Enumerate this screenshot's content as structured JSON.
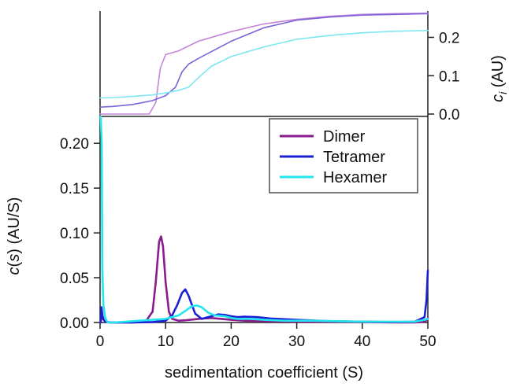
{
  "chart_data": {
    "type": "line",
    "xlabel": "sedimentation coefficient (S)",
    "ylabel_main": {
      "prefix": "c",
      "middle": "(",
      "italic": "s",
      "suffix": ") (AU/S)"
    },
    "ylabel_top": {
      "italic": "c",
      "subscript": "i",
      "suffix": " (AU)"
    },
    "xlim": [
      0,
      50
    ],
    "x_ticks": [
      0,
      10,
      20,
      30,
      40,
      50
    ],
    "x_tick_labels": [
      "0",
      "10",
      "20",
      "30",
      "40",
      "50"
    ],
    "ylim_main": [
      0,
      0.23
    ],
    "y_ticks_main": [
      0.0,
      0.05,
      0.1,
      0.15,
      0.2
    ],
    "y_tick_labels_main": [
      "0.00",
      "0.05",
      "0.10",
      "0.15",
      "0.20"
    ],
    "ylim_top": [
      0,
      0.27
    ],
    "y_ticks_top": [
      0.0,
      0.1,
      0.2
    ],
    "y_tick_labels_top": [
      "0.0",
      "0.1",
      "0.2"
    ],
    "legend": {
      "placement": "center-right",
      "entries": [
        "Dimer",
        "Tetramer",
        "Hexamer"
      ]
    },
    "colors": {
      "Dimer": "#8a1b8e",
      "Tetramer": "#1a1fd6",
      "Hexamer": "#22e6ee",
      "Dimer_cum": "#c487d8",
      "Tetramer_cum": "#7d62d8",
      "Hexamer_cum": "#7fe7f2"
    },
    "series": [
      {
        "name": "Dimer",
        "x": [
          0.1,
          0.2,
          0.4,
          0.8,
          1.5,
          3,
          5,
          7,
          8,
          8.5,
          9,
          9.3,
          9.6,
          10,
          10.5,
          11,
          12,
          13,
          15,
          17,
          20,
          22,
          25,
          30,
          35,
          40,
          45,
          48,
          49.5,
          49.9,
          50
        ],
        "y": [
          0.0,
          0.012,
          0.004,
          0.001,
          0.0,
          0.0,
          0.0,
          0.0015,
          0.012,
          0.045,
          0.09,
          0.096,
          0.085,
          0.045,
          0.012,
          0.004,
          0.002,
          0.0025,
          0.004,
          0.005,
          0.003,
          0.002,
          0.0015,
          0.001,
          0.0008,
          0.0005,
          0.0,
          0.0,
          0.001,
          0.003,
          0.005
        ]
      },
      {
        "name": "Tetramer",
        "x": [
          0.1,
          0.2,
          0.4,
          0.8,
          1.5,
          3,
          5,
          8,
          10,
          11,
          11.8,
          12.5,
          13,
          13.5,
          14.5,
          15.5,
          17,
          18,
          19,
          20,
          21,
          22,
          24,
          26,
          30,
          35,
          40,
          45,
          48,
          49.5,
          49.8,
          50
        ],
        "y": [
          0.0,
          0.017,
          0.006,
          0.001,
          0.0,
          0.0,
          0.0,
          0.0005,
          0.002,
          0.008,
          0.02,
          0.033,
          0.037,
          0.03,
          0.01,
          0.004,
          0.007,
          0.009,
          0.0085,
          0.007,
          0.006,
          0.0065,
          0.006,
          0.0045,
          0.003,
          0.0015,
          0.001,
          0.0005,
          0.001,
          0.006,
          0.025,
          0.058
        ]
      },
      {
        "name": "Hexamer",
        "x": [
          0.1,
          0.25,
          0.35,
          0.5,
          0.8,
          1.2,
          2,
          4,
          6,
          8,
          10,
          12,
          13,
          14,
          14.8,
          15.5,
          16.5,
          17.5,
          19,
          20,
          21,
          23,
          25,
          28,
          32,
          36,
          40,
          45,
          48,
          49.5,
          50
        ],
        "y": [
          0.23,
          0.2,
          0.06,
          0.02,
          0.004,
          0.0,
          0.0,
          0.001,
          0.002,
          0.003,
          0.004,
          0.008,
          0.013,
          0.018,
          0.019,
          0.017,
          0.011,
          0.008,
          0.007,
          0.005,
          0.004,
          0.004,
          0.003,
          0.002,
          0.002,
          0.0015,
          0.001,
          0.001,
          0.001,
          0.003,
          0.004
        ]
      },
      {
        "name": "Dimer cumulative",
        "x": [
          0,
          2,
          4,
          6,
          7.5,
          8.5,
          9.2,
          10,
          12,
          15,
          20,
          25,
          30,
          35,
          40,
          45,
          50
        ],
        "y": [
          0.0,
          0.0,
          0.0,
          0.0,
          0.0,
          0.03,
          0.12,
          0.155,
          0.165,
          0.19,
          0.215,
          0.235,
          0.247,
          0.255,
          0.26,
          0.262,
          0.263
        ]
      },
      {
        "name": "Tetramer cumulative",
        "x": [
          0,
          2,
          5,
          8,
          10,
          11.5,
          12.5,
          13.5,
          15,
          20,
          25,
          30,
          35,
          40,
          45,
          50
        ],
        "y": [
          0.018,
          0.02,
          0.025,
          0.035,
          0.048,
          0.07,
          0.11,
          0.13,
          0.145,
          0.19,
          0.225,
          0.245,
          0.253,
          0.258,
          0.26,
          0.262
        ]
      },
      {
        "name": "Hexamer cumulative",
        "x": [
          0,
          2,
          5,
          8,
          10,
          12,
          13.5,
          15,
          17,
          20,
          25,
          30,
          35,
          40,
          45,
          50
        ],
        "y": [
          0.042,
          0.043,
          0.046,
          0.05,
          0.055,
          0.062,
          0.07,
          0.095,
          0.125,
          0.15,
          0.175,
          0.195,
          0.205,
          0.212,
          0.216,
          0.218
        ]
      }
    ]
  }
}
